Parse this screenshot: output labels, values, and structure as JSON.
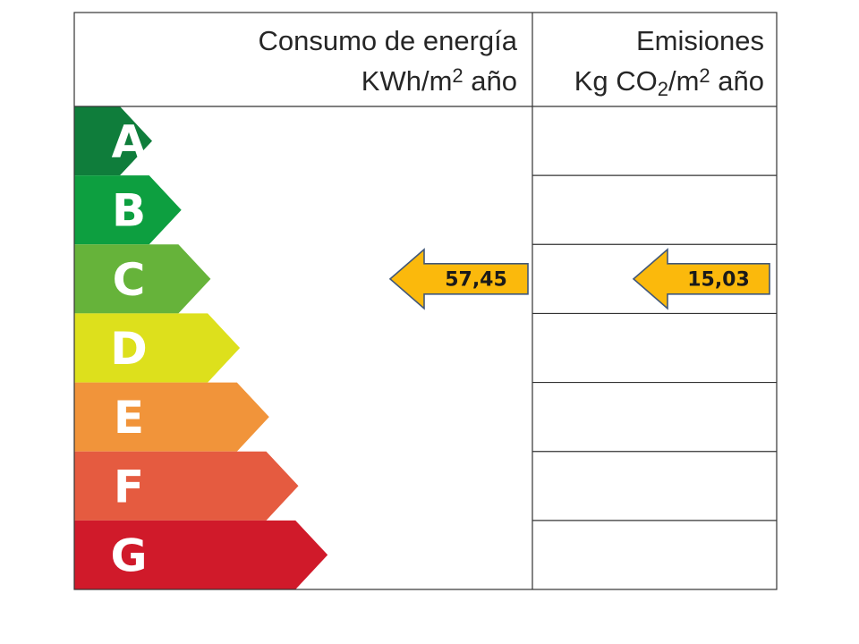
{
  "header": {
    "consumption": {
      "line1": "Consumo de energía",
      "unit_prefix": "KWh/m",
      "unit_exponent": "2",
      "unit_suffix": " año"
    },
    "emissions": {
      "line1": "Emisiones",
      "unit_prefix": "Kg CO",
      "unit_subscript": "2",
      "unit_mid": "/m",
      "unit_exponent": "2",
      "unit_suffix": " año"
    }
  },
  "rating_scale": [
    {
      "letter": "A",
      "color": "#0f7d3b"
    },
    {
      "letter": "B",
      "color": "#0d9f40"
    },
    {
      "letter": "C",
      "color": "#66b33a"
    },
    {
      "letter": "D",
      "color": "#dde01c"
    },
    {
      "letter": "E",
      "color": "#f1943a"
    },
    {
      "letter": "F",
      "color": "#e55b40"
    },
    {
      "letter": "G",
      "color": "#d01a2a"
    }
  ],
  "consumption_rating": {
    "class": "C",
    "value": "57,45"
  },
  "emissions_rating": {
    "class": "C",
    "value": "15,03"
  },
  "pointer_color": "#fbb90c"
}
